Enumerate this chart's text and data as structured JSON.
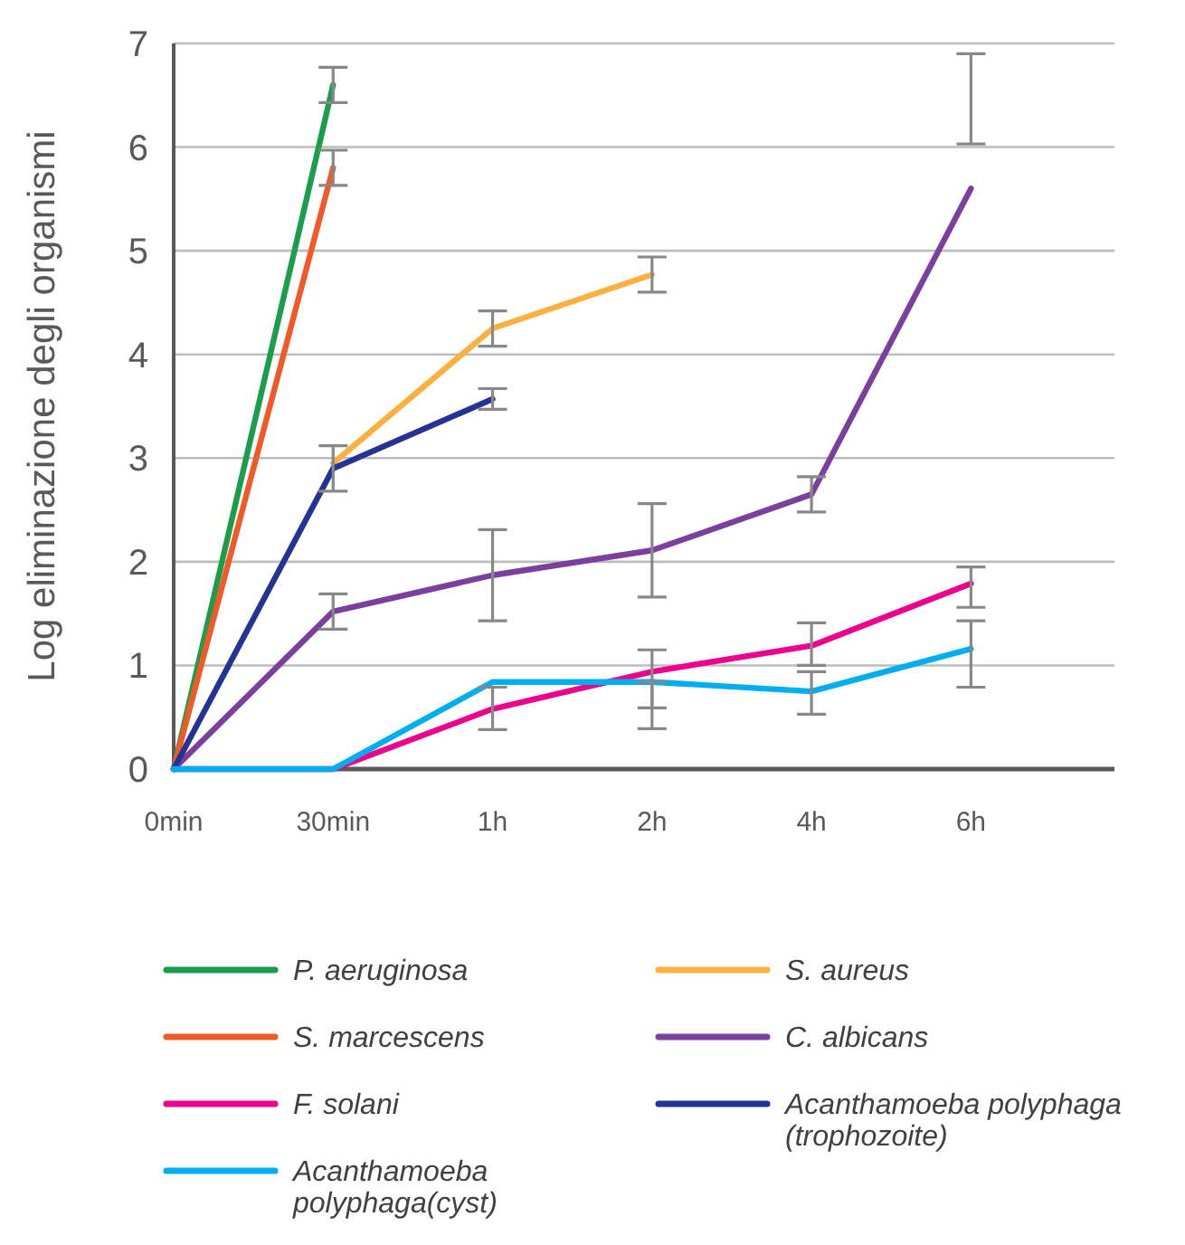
{
  "chart_data": {
    "type": "line",
    "ylabel": "Log eliminazione degli organismi",
    "categories": [
      "0min",
      "30min",
      "1h",
      "2h",
      "4h",
      "6h"
    ],
    "ylim": [
      0,
      7
    ],
    "yticks": [
      0,
      1,
      2,
      3,
      4,
      5,
      6,
      7
    ],
    "grid": "y",
    "legend": "bottom",
    "marker": "none",
    "line_style": "solid",
    "series": [
      {
        "name": "P. aeruginosa",
        "color": "#1a9e4b",
        "values": [
          0,
          6.6,
          null,
          null,
          null,
          null
        ],
        "errors": [
          null,
          0.17,
          null,
          null,
          null,
          null
        ]
      },
      {
        "name": "S. aureus",
        "color": "#fbb040",
        "values": [
          null,
          2.95,
          4.25,
          4.77,
          null,
          null
        ],
        "errors": [
          null,
          null,
          0.17,
          0.17,
          null,
          null
        ]
      },
      {
        "name": "S. marcescens",
        "color": "#f05a28",
        "values": [
          0,
          5.8,
          null,
          null,
          null,
          null
        ],
        "errors": [
          null,
          0.17,
          null,
          null,
          null,
          null
        ]
      },
      {
        "name": "C. albicans",
        "color": "#7b3f9e",
        "values": [
          0,
          1.52,
          1.87,
          2.11,
          2.65,
          5.6
        ],
        "errors": [
          null,
          0.17,
          0.44,
          0.45,
          0.17,
          [
            6.03,
            6.9
          ]
        ]
      },
      {
        "name": "F. solani",
        "color": "#ec008c",
        "values": [
          0,
          0,
          0.58,
          0.94,
          1.19,
          1.79
        ],
        "errors": [
          null,
          null,
          [
            0.38,
            0.79
          ],
          [
            0.59,
            1.15
          ],
          [
            1.0,
            1.41
          ],
          [
            1.56,
            1.95
          ]
        ]
      },
      {
        "name": "Acanthamoeba polyphaga (trophozoite)",
        "color": "#253494",
        "values": [
          0,
          2.9,
          3.57,
          null,
          null,
          null
        ],
        "errors": [
          null,
          0.22,
          0.1,
          null,
          null,
          null
        ]
      },
      {
        "name": "Acanthamoeba polyphaga(cyst)",
        "color": "#00aeef",
        "values": [
          0,
          0,
          0.84,
          0.84,
          0.75,
          1.16
        ],
        "errors": [
          null,
          null,
          null,
          [
            0.39,
            0.84
          ],
          [
            0.53,
            0.94
          ],
          [
            0.79,
            1.43
          ]
        ]
      }
    ]
  }
}
